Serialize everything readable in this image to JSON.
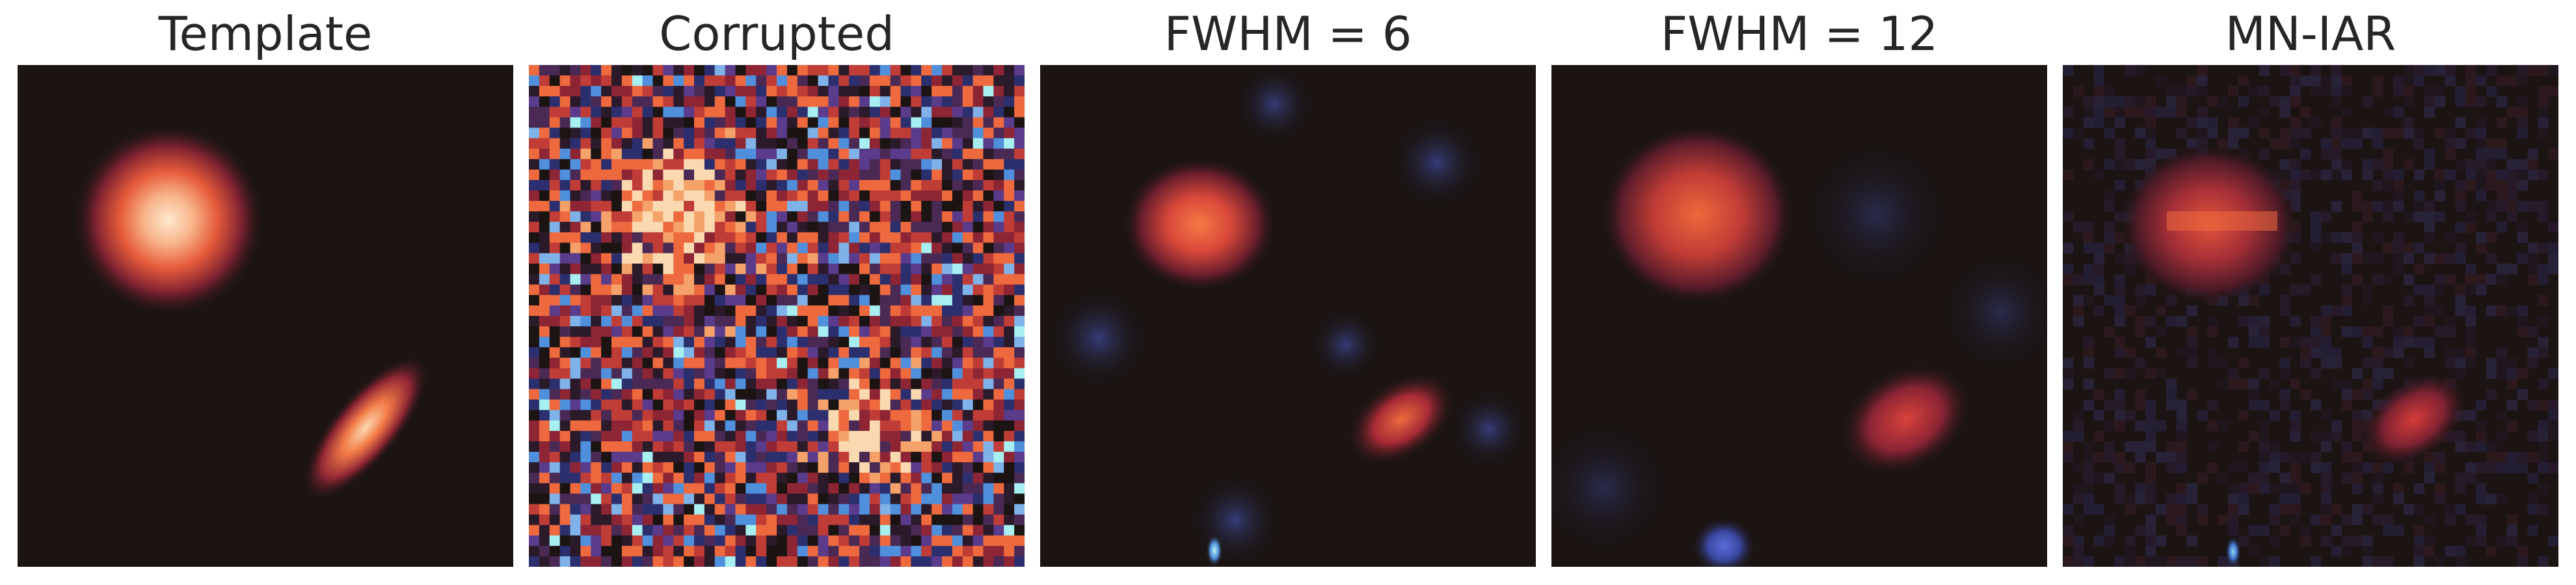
{
  "figure": {
    "panels": [
      {
        "title": "Template"
      },
      {
        "title": "Corrupted"
      },
      {
        "title": "FWHM = 6"
      },
      {
        "title": "FWHM = 12"
      },
      {
        "title": "MN-IAR"
      }
    ]
  },
  "colors": {
    "background": "#ffffff",
    "title_text": "#262626",
    "image_dark": "#1b1413",
    "hot_core": "#fbe6c6",
    "hot_mid": "#ee6a3e",
    "warm": "#a52a36",
    "cool_mid": "#3f3f8f",
    "cool_bright": "#4f8fdc",
    "cyan": "#a7eff0"
  }
}
